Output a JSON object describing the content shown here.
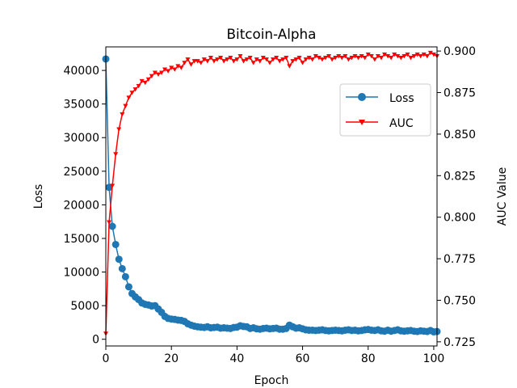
{
  "chart_data": {
    "type": "line",
    "title": "Bitcoin-Alpha",
    "xlabel": "Epoch",
    "ylabel_left": "Loss",
    "ylabel_right": "AUC Value",
    "xlim": [
      0,
      101
    ],
    "ylim_left": [
      -1000,
      43500
    ],
    "ylim_right": [
      0.7225,
      0.9025
    ],
    "xticks": [
      0,
      20,
      40,
      60,
      80,
      100
    ],
    "yticks_left": [
      0,
      5000,
      10000,
      15000,
      20000,
      25000,
      30000,
      35000,
      40000
    ],
    "yticks_right": [
      0.725,
      0.75,
      0.775,
      0.8,
      0.825,
      0.85,
      0.875,
      0.9
    ],
    "ytick_labels_right": [
      "0.725",
      "0.750",
      "0.775",
      "0.800",
      "0.825",
      "0.850",
      "0.875",
      "0.900"
    ],
    "grid": false,
    "legend_position": "upper-right",
    "colors": {
      "loss": "#1f77b4",
      "auc": "#ff0000"
    },
    "series": [
      {
        "name": "Loss",
        "axis": "left",
        "marker": "circle",
        "x": [
          0,
          1,
          2,
          3,
          4,
          5,
          6,
          7,
          8,
          9,
          10,
          11,
          12,
          13,
          14,
          15,
          16,
          17,
          18,
          19,
          20,
          21,
          22,
          23,
          24,
          25,
          26,
          27,
          28,
          29,
          30,
          31,
          32,
          33,
          34,
          35,
          36,
          37,
          38,
          39,
          40,
          41,
          42,
          43,
          44,
          45,
          46,
          47,
          48,
          49,
          50,
          51,
          52,
          53,
          54,
          55,
          56,
          57,
          58,
          59,
          60,
          61,
          62,
          63,
          64,
          65,
          66,
          67,
          68,
          69,
          70,
          71,
          72,
          73,
          74,
          75,
          76,
          77,
          78,
          79,
          80,
          81,
          82,
          83,
          84,
          85,
          86,
          87,
          88,
          89,
          90,
          91,
          92,
          93,
          94,
          95,
          96,
          97,
          98,
          99,
          100,
          101
        ],
        "y": [
          41700,
          22600,
          16800,
          14100,
          11900,
          10500,
          9300,
          7800,
          6800,
          6300,
          5900,
          5400,
          5200,
          5100,
          4950,
          5000,
          4500,
          4000,
          3400,
          3100,
          3000,
          2950,
          2850,
          2800,
          2650,
          2300,
          2100,
          1950,
          1850,
          1800,
          1750,
          1850,
          1700,
          1750,
          1800,
          1650,
          1700,
          1650,
          1600,
          1750,
          1800,
          2000,
          1900,
          1850,
          1600,
          1700,
          1550,
          1500,
          1600,
          1650,
          1550,
          1600,
          1650,
          1500,
          1500,
          1600,
          2100,
          1850,
          1650,
          1700,
          1550,
          1400,
          1350,
          1350,
          1300,
          1350,
          1400,
          1300,
          1250,
          1300,
          1350,
          1300,
          1250,
          1350,
          1400,
          1300,
          1350,
          1250,
          1300,
          1400,
          1450,
          1350,
          1300,
          1400,
          1250,
          1200,
          1350,
          1200,
          1300,
          1400,
          1250,
          1200,
          1250,
          1300,
          1200,
          1150,
          1250,
          1200,
          1150,
          1300,
          1100,
          1150
        ]
      },
      {
        "name": "AUC",
        "axis": "right",
        "marker": "tri_down",
        "x": [
          0,
          1,
          2,
          3,
          4,
          5,
          6,
          7,
          8,
          9,
          10,
          11,
          12,
          13,
          14,
          15,
          16,
          17,
          18,
          19,
          20,
          21,
          22,
          23,
          24,
          25,
          26,
          27,
          28,
          29,
          30,
          31,
          32,
          33,
          34,
          35,
          36,
          37,
          38,
          39,
          40,
          41,
          42,
          43,
          44,
          45,
          46,
          47,
          48,
          49,
          50,
          51,
          52,
          53,
          54,
          55,
          56,
          57,
          58,
          59,
          60,
          61,
          62,
          63,
          64,
          65,
          66,
          67,
          68,
          69,
          70,
          71,
          72,
          73,
          74,
          75,
          76,
          77,
          78,
          79,
          80,
          81,
          82,
          83,
          84,
          85,
          86,
          87,
          88,
          89,
          90,
          91,
          92,
          93,
          94,
          95,
          96,
          97,
          98,
          99,
          100,
          101
        ],
        "y": [
          0.73,
          0.797,
          0.819,
          0.838,
          0.853,
          0.862,
          0.867,
          0.872,
          0.875,
          0.877,
          0.879,
          0.882,
          0.881,
          0.883,
          0.885,
          0.887,
          0.886,
          0.887,
          0.889,
          0.888,
          0.89,
          0.889,
          0.891,
          0.89,
          0.893,
          0.895,
          0.892,
          0.894,
          0.894,
          0.893,
          0.895,
          0.894,
          0.896,
          0.894,
          0.895,
          0.896,
          0.894,
          0.895,
          0.896,
          0.894,
          0.895,
          0.897,
          0.894,
          0.895,
          0.896,
          0.893,
          0.895,
          0.894,
          0.896,
          0.895,
          0.893,
          0.895,
          0.896,
          0.894,
          0.895,
          0.896,
          0.891,
          0.894,
          0.895,
          0.896,
          0.893,
          0.895,
          0.896,
          0.895,
          0.897,
          0.896,
          0.895,
          0.896,
          0.897,
          0.895,
          0.896,
          0.897,
          0.896,
          0.897,
          0.895,
          0.896,
          0.897,
          0.896,
          0.897,
          0.896,
          0.898,
          0.897,
          0.895,
          0.897,
          0.896,
          0.898,
          0.897,
          0.896,
          0.898,
          0.897,
          0.896,
          0.897,
          0.898,
          0.896,
          0.897,
          0.898,
          0.897,
          0.898,
          0.897,
          0.899,
          0.898,
          0.897
        ]
      }
    ]
  }
}
